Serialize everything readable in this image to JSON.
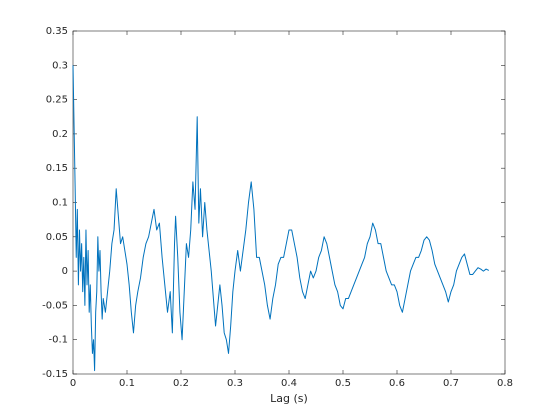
{
  "chart_data": {
    "type": "line",
    "xlabel": "Lag (s)",
    "color": "#0072bd",
    "xlim": [
      0,
      0.8
    ],
    "xticks": [
      0,
      0.1,
      0.2,
      0.3,
      0.4,
      0.5,
      0.6,
      0.7,
      0.8
    ],
    "ylim": [
      -0.15,
      0.35
    ],
    "yticks": [
      -0.15,
      -0.1,
      -0.05,
      0,
      0.05,
      0.1,
      0.15,
      0.2,
      0.25,
      0.3,
      0.35
    ],
    "x": [
      0,
      0.002,
      0.004,
      0.006,
      0.008,
      0.01,
      0.012,
      0.014,
      0.016,
      0.018,
      0.02,
      0.022,
      0.024,
      0.026,
      0.028,
      0.03,
      0.032,
      0.034,
      0.036,
      0.038,
      0.04,
      0.042,
      0.044,
      0.046,
      0.048,
      0.05,
      0.052,
      0.054,
      0.056,
      0.06,
      0.064,
      0.068,
      0.072,
      0.076,
      0.08,
      0.084,
      0.088,
      0.092,
      0.096,
      0.1,
      0.104,
      0.108,
      0.112,
      0.116,
      0.12,
      0.125,
      0.13,
      0.135,
      0.14,
      0.145,
      0.15,
      0.155,
      0.16,
      0.165,
      0.17,
      0.175,
      0.18,
      0.184,
      0.188,
      0.19,
      0.194,
      0.198,
      0.202,
      0.206,
      0.21,
      0.214,
      0.218,
      0.222,
      0.226,
      0.23,
      0.233,
      0.236,
      0.24,
      0.244,
      0.248,
      0.252,
      0.256,
      0.26,
      0.264,
      0.268,
      0.272,
      0.276,
      0.28,
      0.284,
      0.288,
      0.292,
      0.296,
      0.3,
      0.305,
      0.31,
      0.315,
      0.32,
      0.325,
      0.33,
      0.335,
      0.34,
      0.345,
      0.35,
      0.355,
      0.36,
      0.365,
      0.37,
      0.375,
      0.38,
      0.385,
      0.39,
      0.395,
      0.4,
      0.405,
      0.41,
      0.415,
      0.42,
      0.425,
      0.43,
      0.435,
      0.44,
      0.445,
      0.45,
      0.455,
      0.46,
      0.465,
      0.47,
      0.475,
      0.48,
      0.485,
      0.49,
      0.495,
      0.5,
      0.505,
      0.51,
      0.515,
      0.52,
      0.525,
      0.53,
      0.535,
      0.54,
      0.545,
      0.55,
      0.555,
      0.56,
      0.565,
      0.57,
      0.575,
      0.58,
      0.585,
      0.59,
      0.595,
      0.6,
      0.605,
      0.61,
      0.615,
      0.62,
      0.625,
      0.63,
      0.635,
      0.64,
      0.645,
      0.65,
      0.655,
      0.66,
      0.665,
      0.67,
      0.675,
      0.68,
      0.685,
      0.69,
      0.695,
      0.7,
      0.705,
      0.71,
      0.715,
      0.72,
      0.725,
      0.73,
      0.735,
      0.74,
      0.745,
      0.75,
      0.755,
      0.76,
      0.765,
      0.77
    ],
    "values": [
      0.3,
      0.21,
      0.12,
      0.02,
      0.09,
      -0.02,
      0.06,
      0,
      0.04,
      -0.03,
      0.02,
      -0.05,
      0.06,
      -0.02,
      0.03,
      -0.06,
      -0.02,
      -0.08,
      -0.12,
      -0.1,
      -0.145,
      -0.06,
      -0.03,
      0.05,
      0,
      0.03,
      -0.03,
      -0.07,
      -0.04,
      -0.06,
      -0.03,
      0,
      0.04,
      0.06,
      0.12,
      0.08,
      0.04,
      0.05,
      0.03,
      0.01,
      -0.02,
      -0.06,
      -0.09,
      -0.05,
      -0.03,
      -0.01,
      0.02,
      0.04,
      0.05,
      0.07,
      0.09,
      0.06,
      0.07,
      0.02,
      -0.02,
      -0.06,
      -0.03,
      -0.09,
      0.04,
      0.08,
      0.02,
      -0.06,
      -0.1,
      -0.03,
      0.04,
      0.02,
      0.06,
      0.13,
      0.09,
      0.225,
      0.07,
      0.12,
      0.05,
      0.1,
      0.06,
      0.03,
      0,
      -0.04,
      -0.08,
      -0.05,
      -0.02,
      -0.05,
      -0.09,
      -0.1,
      -0.12,
      -0.08,
      -0.03,
      0,
      0.03,
      0,
      0.03,
      0.06,
      0.1,
      0.13,
      0.09,
      0.02,
      0.02,
      0,
      -0.02,
      -0.05,
      -0.07,
      -0.04,
      -0.02,
      0.01,
      0.02,
      0.02,
      0.04,
      0.06,
      0.06,
      0.04,
      0.02,
      -0.01,
      -0.03,
      -0.04,
      -0.02,
      0,
      -0.01,
      0,
      0.02,
      0.03,
      0.05,
      0.04,
      0.02,
      0,
      -0.02,
      -0.03,
      -0.05,
      -0.055,
      -0.04,
      -0.04,
      -0.03,
      -0.02,
      -0.01,
      0,
      0.01,
      0.02,
      0.04,
      0.05,
      0.07,
      0.06,
      0.04,
      0.04,
      0.02,
      0,
      -0.01,
      -0.02,
      -0.02,
      -0.03,
      -0.05,
      -0.06,
      -0.04,
      -0.02,
      0,
      0.01,
      0.02,
      0.02,
      0.03,
      0.045,
      0.05,
      0.045,
      0.03,
      0.01,
      0,
      -0.01,
      -0.02,
      -0.03,
      -0.045,
      -0.03,
      -0.02,
      0,
      0.01,
      0.02,
      0.025,
      0.01,
      -0.005,
      -0.005,
      0,
      0.005,
      0.003,
      0,
      0.003,
      0.001
    ]
  }
}
